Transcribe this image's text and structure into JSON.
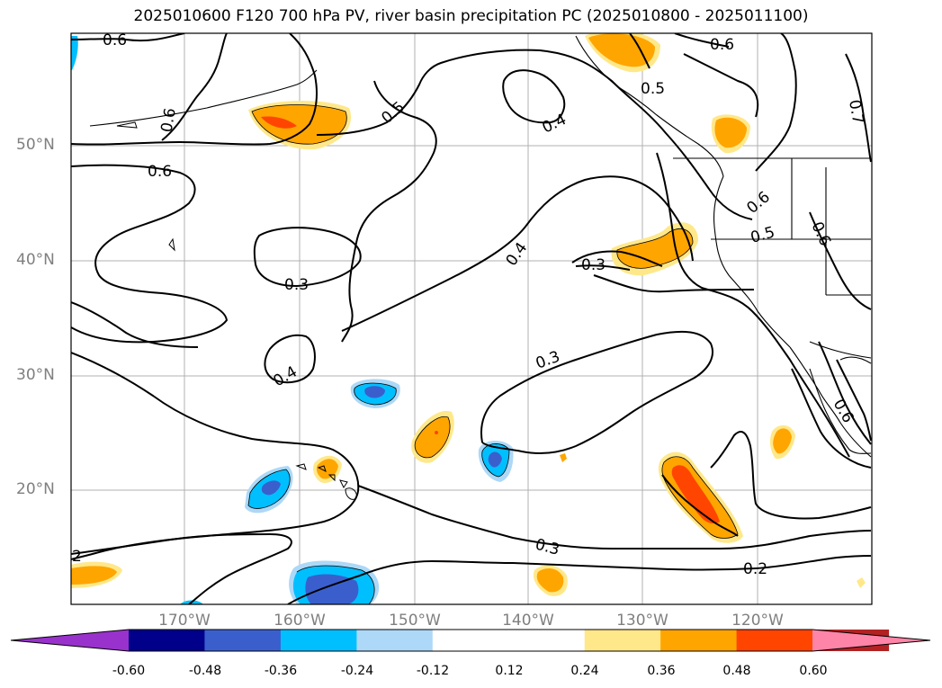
{
  "title": "2025010600 F120 700 hPa PV, river basin precipitation PC (2025010800 - 2025011100)",
  "lat_labels": [
    "50°N",
    "40°N",
    "30°N",
    "20°N"
  ],
  "lon_labels": [
    "170°W",
    "160°W",
    "150°W",
    "140°W",
    "130°W",
    "120°W"
  ],
  "colorbar": {
    "colors": [
      "#9932cc",
      "#00008b",
      "#3a5fcd",
      "#00bfff",
      "#add8f7",
      "#ffffff",
      "#ffffff",
      "#ffe88a",
      "#ffa500",
      "#ff4500",
      "#b22222",
      "#ff85a8"
    ],
    "ticks": [
      "-0.60",
      "-0.48",
      "-0.36",
      "-0.24",
      "-0.12",
      "0.12",
      "0.24",
      "0.36",
      "0.48",
      "0.60"
    ]
  },
  "contour_labels": [
    "0.6",
    "0.6",
    "0.5",
    "0.6",
    "0.5",
    "0.7",
    "0.4",
    "0.6",
    "0.3",
    "0.4",
    "0.3",
    "0.6",
    "0.5",
    "0.6",
    "0.4",
    "0.3",
    "0.3",
    "0.2",
    "0.6",
    "2"
  ]
}
